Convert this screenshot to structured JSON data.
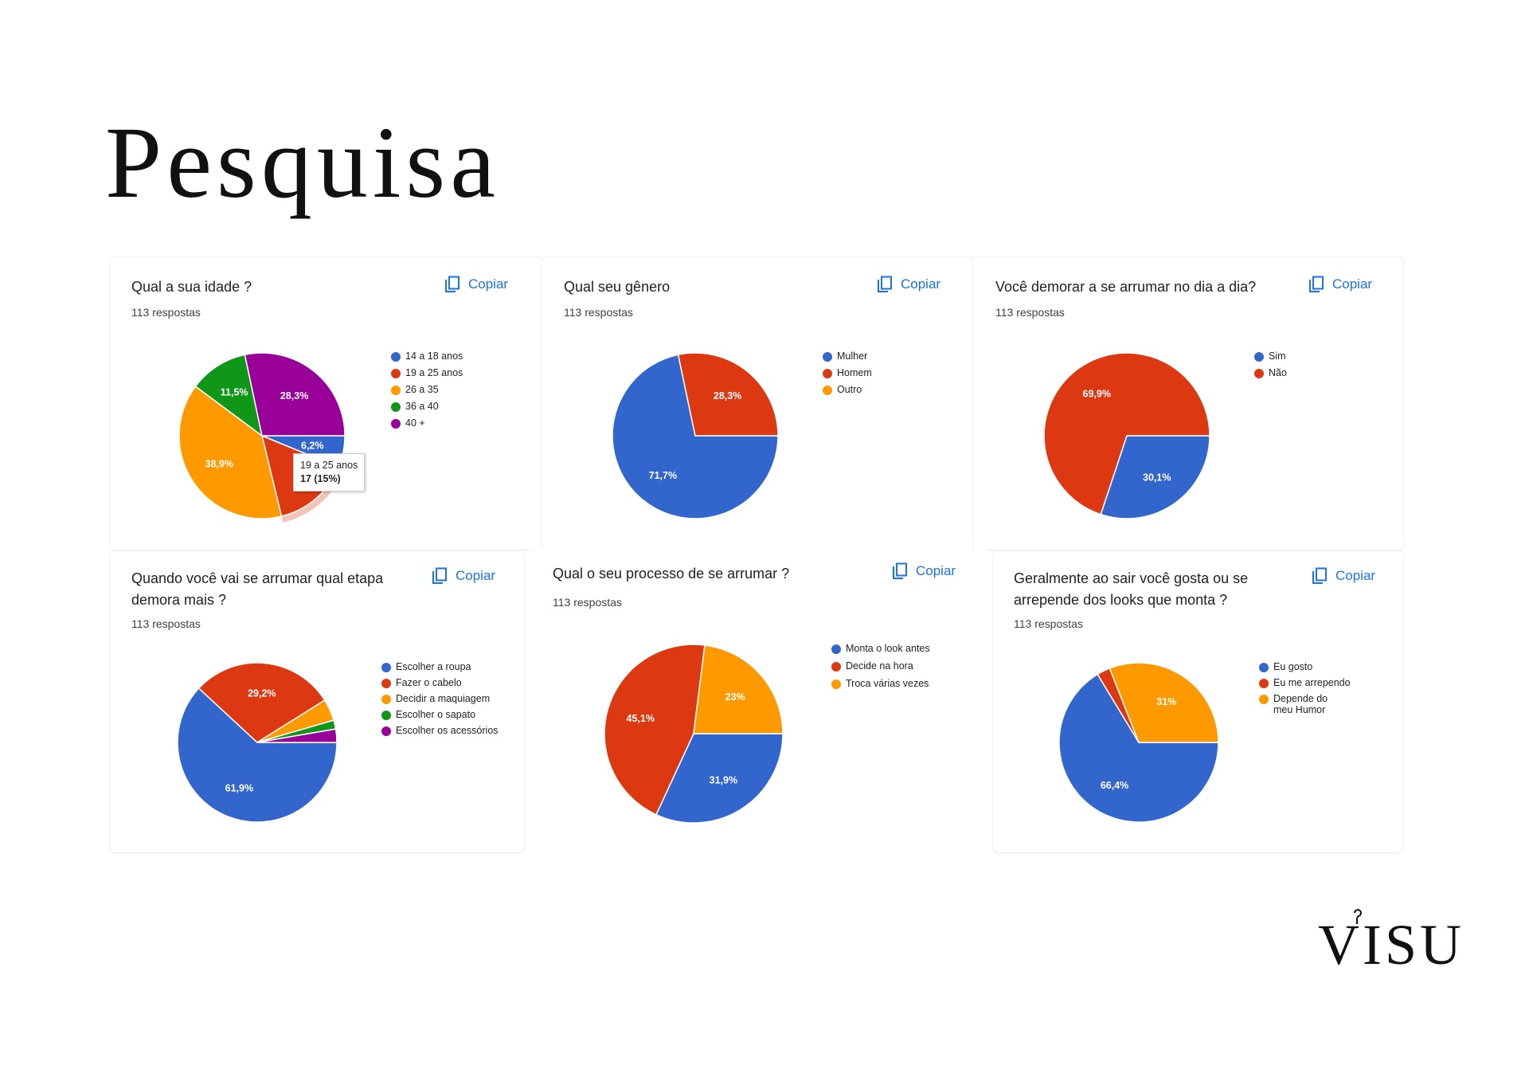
{
  "page_title": "Pesquisa",
  "logo_text": "VISU",
  "copy_label": "Copiar",
  "chart_data": [
    {
      "type": "pie",
      "question": "Qual a sua idade ?",
      "responses": "113 respostas",
      "categories": [
        "14 a 18 anos",
        "19 a 25 anos",
        "26 a 35",
        "36 a 40",
        "40 +"
      ],
      "values": [
        6.2,
        15,
        38.9,
        11.5,
        28.3
      ],
      "labels": [
        "6,2%",
        "",
        "38,9%",
        "11,5%",
        "28,3%"
      ],
      "colors": [
        "#3366cc",
        "#dc3912",
        "#ff9900",
        "#109618",
        "#990099"
      ],
      "tooltip": {
        "category": "19 a 25 anos",
        "value": "17 (15%)"
      }
    },
    {
      "type": "pie",
      "question": "Qual seu gênero",
      "responses": "113 respostas",
      "categories": [
        "Mulher",
        "Homem",
        "Outro"
      ],
      "values": [
        71.7,
        28.3,
        0
      ],
      "labels": [
        "71,7%",
        "28,3%",
        ""
      ],
      "colors": [
        "#3366cc",
        "#dc3912",
        "#ff9900"
      ]
    },
    {
      "type": "pie",
      "question": "Você demorar a se arrumar no dia a dia?",
      "responses": "113 respostas",
      "categories": [
        "Sim",
        "Não"
      ],
      "values": [
        30.1,
        69.9
      ],
      "labels": [
        "30,1%",
        "69,9%"
      ],
      "colors": [
        "#3366cc",
        "#dc3912"
      ]
    },
    {
      "type": "pie",
      "question": "Quando você vai se arrumar  qual etapa demora mais ?",
      "responses": "113 respostas",
      "categories": [
        "Escolher a roupa",
        "Fazer o cabelo",
        "Decidir a maquiagem",
        "Escolher o sapato",
        "Escolher os acessórios"
      ],
      "values": [
        61.9,
        29.2,
        4.4,
        1.8,
        2.7
      ],
      "labels": [
        "61,9%",
        "29,2%",
        "",
        "",
        ""
      ],
      "colors": [
        "#3366cc",
        "#dc3912",
        "#ff9900",
        "#109618",
        "#990099"
      ]
    },
    {
      "type": "pie",
      "question": "Qual o seu processo de se arrumar ?",
      "responses": "113 respostas",
      "categories": [
        "Monta o look antes",
        "Decide na hora",
        "Troca várias vezes"
      ],
      "values": [
        31.9,
        45.1,
        23
      ],
      "labels": [
        "31,9%",
        "45,1%",
        "23%"
      ],
      "colors": [
        "#3366cc",
        "#dc3912",
        "#ff9900"
      ]
    },
    {
      "type": "pie",
      "question": "Geralmente ao sair você gosta ou se arrepende dos looks que monta ?",
      "responses": "113 respostas",
      "categories": [
        "Eu gosto",
        "Eu me arrependo",
        "Depende do meu Humor"
      ],
      "values": [
        66.4,
        2.7,
        31
      ],
      "labels": [
        "66,4%",
        "",
        "31%"
      ],
      "colors": [
        "#3366cc",
        "#dc3912",
        "#ff9900"
      ]
    }
  ]
}
